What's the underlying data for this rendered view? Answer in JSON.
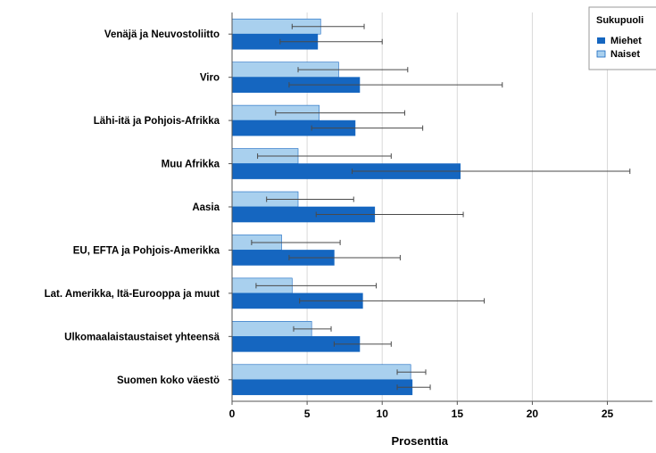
{
  "chart_data": {
    "type": "bar",
    "orientation": "horizontal",
    "categories": [
      "Venäjä ja Neuvostoliitto",
      "Viro",
      "Lähi-itä ja Pohjois-Afrikka",
      "Muu Afrikka",
      "Aasia",
      "EU, EFTA ja Pohjois-Amerikka",
      "Lat. Amerikka, Itä-Eurooppa ja muut",
      "Ulkomaalaistaustaiset yhteensä",
      "Suomen koko väestö"
    ],
    "series": [
      {
        "name": "Miehet",
        "color": "#1566c0",
        "values": [
          5.7,
          8.5,
          8.2,
          15.2,
          9.5,
          6.8,
          8.7,
          8.5,
          12.0
        ],
        "ci_low": [
          3.2,
          3.8,
          5.3,
          8.0,
          5.6,
          3.8,
          4.5,
          6.8,
          11.0
        ],
        "ci_high": [
          10.0,
          18.0,
          12.7,
          26.5,
          15.4,
          11.2,
          16.8,
          10.6,
          13.2
        ]
      },
      {
        "name": "Naiset",
        "color": "#a9d0ee",
        "values": [
          5.9,
          7.1,
          5.8,
          4.4,
          4.4,
          3.3,
          4.0,
          5.3,
          11.9
        ],
        "ci_low": [
          4.0,
          4.4,
          2.9,
          1.7,
          2.3,
          1.3,
          1.6,
          4.1,
          11.0
        ],
        "ci_high": [
          8.8,
          11.7,
          11.5,
          10.6,
          8.1,
          7.2,
          9.6,
          6.6,
          12.9
        ]
      }
    ],
    "xlabel": "Prosenttia",
    "xlim": [
      0,
      28
    ],
    "xticks": [
      0,
      5,
      10,
      15,
      20,
      25
    ],
    "grid": true,
    "legend": {
      "title": "Sukupuoli",
      "position": "top-right"
    }
  }
}
